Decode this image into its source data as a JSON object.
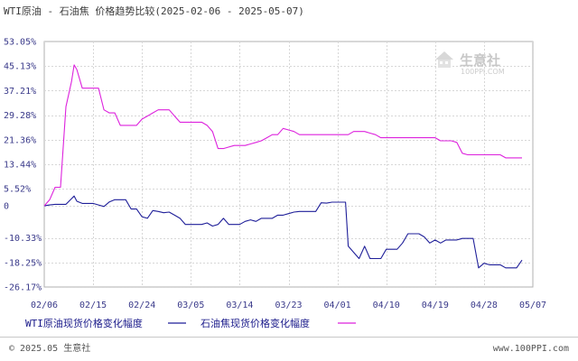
{
  "chart_data": {
    "type": "line",
    "title": "WTI原油 - 石油焦 价格趋势比较(2025-02-06 - 2025-05-07)",
    "ylim": [
      -26.17,
      53.05
    ],
    "y_ticks": [
      "53.05%",
      "45.13%",
      "37.21%",
      "29.28%",
      "21.36%",
      "13.44%",
      "5.52%",
      "0",
      "-10.33%",
      "-18.25%",
      "-26.17%"
    ],
    "y_tick_values": [
      53.05,
      45.13,
      37.21,
      29.28,
      21.36,
      13.44,
      5.52,
      0,
      -10.33,
      -18.25,
      -26.17
    ],
    "x_ticks": [
      "02/06",
      "02/15",
      "02/24",
      "03/05",
      "03/14",
      "03/23",
      "04/01",
      "04/10",
      "04/19",
      "04/28",
      "05/07"
    ],
    "x_tick_days": [
      0,
      9,
      18,
      27,
      36,
      45,
      54,
      63,
      72,
      81,
      90
    ],
    "grid": true,
    "legend_position": "bottom",
    "series": [
      {
        "name": "WTI原油现货价格变化幅度",
        "color": "#1f1f99",
        "points": [
          [
            0,
            0
          ],
          [
            1,
            0.3
          ],
          [
            2,
            0.5
          ],
          [
            3,
            0.5
          ],
          [
            4,
            0.5
          ],
          [
            5,
            2.3
          ],
          [
            5.5,
            3.2
          ],
          [
            6,
            1.5
          ],
          [
            7,
            0.8
          ],
          [
            8,
            0.8
          ],
          [
            9,
            0.8
          ],
          [
            10,
            0.3
          ],
          [
            11,
            -0.2
          ],
          [
            12,
            1.3
          ],
          [
            13,
            2
          ],
          [
            14,
            2
          ],
          [
            15,
            2
          ],
          [
            16,
            -1
          ],
          [
            17,
            -1
          ],
          [
            18,
            -3.5
          ],
          [
            19,
            -4
          ],
          [
            20,
            -1.5
          ],
          [
            21,
            -1.8
          ],
          [
            22,
            -2.2
          ],
          [
            23,
            -2
          ],
          [
            24,
            -3
          ],
          [
            25,
            -4
          ],
          [
            26,
            -6
          ],
          [
            27,
            -6
          ],
          [
            28,
            -6
          ],
          [
            29,
            -6
          ],
          [
            30,
            -5.5
          ],
          [
            31,
            -6.5
          ],
          [
            32,
            -6
          ],
          [
            33,
            -4
          ],
          [
            34,
            -6
          ],
          [
            35,
            -6
          ],
          [
            36,
            -6
          ],
          [
            37,
            -5
          ],
          [
            38,
            -4.5
          ],
          [
            39,
            -5
          ],
          [
            40,
            -4
          ],
          [
            41,
            -4
          ],
          [
            42,
            -4
          ],
          [
            43,
            -3
          ],
          [
            44,
            -3
          ],
          [
            45,
            -2.5
          ],
          [
            46,
            -2
          ],
          [
            47,
            -1.8
          ],
          [
            48,
            -1.8
          ],
          [
            49,
            -1.8
          ],
          [
            50,
            -1.8
          ],
          [
            51,
            1
          ],
          [
            52,
            0.9
          ],
          [
            53,
            1.2
          ],
          [
            54,
            1.2
          ],
          [
            55,
            1.2
          ],
          [
            55.5,
            1.2
          ],
          [
            56,
            -13
          ],
          [
            57,
            -15
          ],
          [
            58,
            -17
          ],
          [
            59,
            -13
          ],
          [
            60,
            -17
          ],
          [
            61,
            -17
          ],
          [
            62,
            -17
          ],
          [
            63,
            -14
          ],
          [
            64,
            -14
          ],
          [
            65,
            -14
          ],
          [
            66,
            -12
          ],
          [
            67,
            -9
          ],
          [
            68,
            -9
          ],
          [
            69,
            -9
          ],
          [
            70,
            -10
          ],
          [
            71,
            -12
          ],
          [
            72,
            -11
          ],
          [
            73,
            -12
          ],
          [
            74,
            -11
          ],
          [
            75,
            -11
          ],
          [
            76,
            -11
          ],
          [
            77,
            -10.5
          ],
          [
            78,
            -10.5
          ],
          [
            79,
            -10.5
          ],
          [
            80,
            -20
          ],
          [
            81,
            -18.5
          ],
          [
            82,
            -19
          ],
          [
            83,
            -19
          ],
          [
            84,
            -19
          ],
          [
            85,
            -20
          ],
          [
            86,
            -20
          ],
          [
            87,
            -20
          ],
          [
            88,
            -17.5
          ]
        ]
      },
      {
        "name": "石油焦现货价格变化幅度",
        "color": "#dd22dd",
        "points": [
          [
            0,
            0
          ],
          [
            1,
            2
          ],
          [
            2,
            6
          ],
          [
            3,
            6
          ],
          [
            4,
            32
          ],
          [
            5,
            40
          ],
          [
            5.5,
            45.5
          ],
          [
            6,
            44
          ],
          [
            7,
            38
          ],
          [
            8,
            38
          ],
          [
            9,
            38
          ],
          [
            10,
            38
          ],
          [
            11,
            31
          ],
          [
            12,
            30
          ],
          [
            13,
            30
          ],
          [
            14,
            26
          ],
          [
            15,
            26
          ],
          [
            16,
            26
          ],
          [
            17,
            26
          ],
          [
            18,
            28
          ],
          [
            19,
            29
          ],
          [
            20,
            30
          ],
          [
            21,
            31
          ],
          [
            22,
            31
          ],
          [
            23,
            31
          ],
          [
            24,
            29
          ],
          [
            25,
            27
          ],
          [
            26,
            27
          ],
          [
            27,
            27
          ],
          [
            28,
            27
          ],
          [
            29,
            27
          ],
          [
            30,
            26
          ],
          [
            31,
            24
          ],
          [
            32,
            18.5
          ],
          [
            33,
            18.5
          ],
          [
            34,
            19
          ],
          [
            35,
            19.5
          ],
          [
            36,
            19.5
          ],
          [
            37,
            19.5
          ],
          [
            38,
            20
          ],
          [
            39,
            20.5
          ],
          [
            40,
            21
          ],
          [
            41,
            22
          ],
          [
            42,
            23
          ],
          [
            43,
            23
          ],
          [
            44,
            25
          ],
          [
            45,
            24.5
          ],
          [
            46,
            24
          ],
          [
            47,
            23
          ],
          [
            48,
            23
          ],
          [
            49,
            23
          ],
          [
            50,
            23
          ],
          [
            51,
            23
          ],
          [
            52,
            23
          ],
          [
            53,
            23
          ],
          [
            54,
            23
          ],
          [
            55,
            23
          ],
          [
            56,
            23
          ],
          [
            57,
            24
          ],
          [
            58,
            24
          ],
          [
            59,
            24
          ],
          [
            60,
            23.5
          ],
          [
            61,
            23
          ],
          [
            62,
            22
          ],
          [
            63,
            22
          ],
          [
            64,
            22
          ],
          [
            65,
            22
          ],
          [
            66,
            22
          ],
          [
            67,
            22
          ],
          [
            68,
            22
          ],
          [
            69,
            22
          ],
          [
            70,
            22
          ],
          [
            71,
            22
          ],
          [
            72,
            22
          ],
          [
            73,
            21
          ],
          [
            74,
            21
          ],
          [
            75,
            21
          ],
          [
            76,
            20.5
          ],
          [
            77,
            17
          ],
          [
            78,
            16.5
          ],
          [
            79,
            16.5
          ],
          [
            80,
            16.5
          ],
          [
            81,
            16.5
          ],
          [
            82,
            16.5
          ],
          [
            83,
            16.5
          ],
          [
            84,
            16.5
          ],
          [
            85,
            15.5
          ],
          [
            86,
            15.5
          ],
          [
            87,
            15.5
          ],
          [
            88,
            15.5
          ]
        ]
      }
    ]
  },
  "legend": [
    {
      "label": "WTI原油现货价格变化幅度",
      "color": "#1f1f99"
    },
    {
      "label": "石油焦现货价格变化幅度",
      "color": "#dd22dd"
    }
  ],
  "watermark": {
    "name": "生意社",
    "url": "100PPI.COM"
  },
  "footer": {
    "left": "© 2025.05 生意社",
    "right": "www.100PPI.com"
  }
}
